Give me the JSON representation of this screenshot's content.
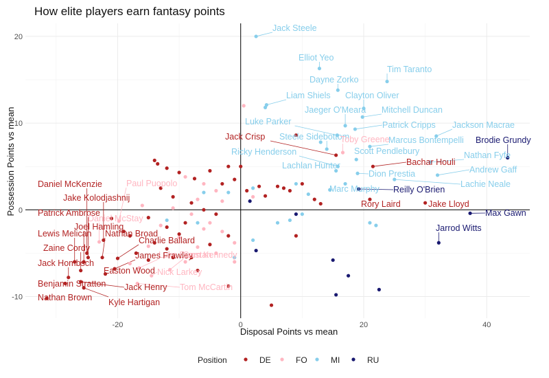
{
  "chart_data": {
    "type": "scatter",
    "title": "How elite players earn fantasy points",
    "xlabel": "Disposal Points vs mean",
    "ylabel": "Possession Points vs mean",
    "xlim": [
      -35,
      47
    ],
    "ylim": [
      -12.5,
      21.5
    ],
    "x_ticks": [
      -20,
      0,
      20,
      40
    ],
    "y_ticks": [
      -10,
      0,
      10,
      20
    ],
    "grid": true,
    "reference_lines": {
      "x": 0,
      "y": 0
    },
    "legend": {
      "title": "Position",
      "position": "bottom",
      "entries": [
        {
          "key": "DE",
          "label": "DE",
          "color": "#b22222"
        },
        {
          "key": "FO",
          "label": "FO",
          "color": "#ffb6c1"
        },
        {
          "key": "MI",
          "label": "MI",
          "color": "#87ceeb"
        },
        {
          "key": "RU",
          "label": "RU",
          "color": "#191970"
        }
      ]
    },
    "labeled_points": [
      {
        "name": "Jack Steele",
        "pos": "MI",
        "x": 2.5,
        "y": 20.0
      },
      {
        "name": "Elliot Yeo",
        "pos": "MI",
        "x": 12.8,
        "y": 16.3
      },
      {
        "name": "Tim Taranto",
        "pos": "MI",
        "x": 23.8,
        "y": 14.8
      },
      {
        "name": "Dayne Zorko",
        "pos": "MI",
        "x": 15.8,
        "y": 13.8
      },
      {
        "name": "Liam Shiels",
        "pos": "MI",
        "x": 4.2,
        "y": 12.1
      },
      {
        "name": "Clayton Oliver",
        "pos": "MI",
        "x": 20.0,
        "y": 11.7
      },
      {
        "name": "Jaeger O'Meara",
        "pos": "MI",
        "x": 17.0,
        "y": 9.7
      },
      {
        "name": "Mitchell Duncan",
        "pos": "MI",
        "x": 19.8,
        "y": 10.7
      },
      {
        "name": "Luke Parker",
        "pos": "MI",
        "x": 15.7,
        "y": 8.6
      },
      {
        "name": "Patrick Cripps",
        "pos": "MI",
        "x": 18.6,
        "y": 9.3
      },
      {
        "name": "Jackson Macrae",
        "pos": "MI",
        "x": 31.8,
        "y": 8.5
      },
      {
        "name": "Jack Crisp",
        "pos": "DE",
        "x": 15.5,
        "y": 6.3
      },
      {
        "name": "Steele Sidebottom",
        "pos": "MI",
        "x": 14.0,
        "y": 7.0
      },
      {
        "name": "Toby Greene",
        "pos": "FO",
        "x": 16.6,
        "y": 6.6
      },
      {
        "name": "Marcus Bontempelli",
        "pos": "MI",
        "x": 21.0,
        "y": 7.3
      },
      {
        "name": "Brodie Grundy",
        "pos": "RU",
        "x": 43.4,
        "y": 6.0
      },
      {
        "name": "Scott Pendlebury",
        "pos": "MI",
        "x": 18.8,
        "y": 5.8
      },
      {
        "name": "Nathan Fyfe",
        "pos": "MI",
        "x": 30.8,
        "y": 5.5
      },
      {
        "name": "Ricky Henderson",
        "pos": "MI",
        "x": 15.8,
        "y": 5.0
      },
      {
        "name": "Bachar Houli",
        "pos": "DE",
        "x": 21.5,
        "y": 5.0
      },
      {
        "name": "Andrew Gaff",
        "pos": "MI",
        "x": 32.0,
        "y": 4.0
      },
      {
        "name": "Lachlan Hunter",
        "pos": "MI",
        "x": 15.5,
        "y": 4.5
      },
      {
        "name": "Dion Prestia",
        "pos": "MI",
        "x": 19.0,
        "y": 4.2
      },
      {
        "name": "Lachie Neale",
        "pos": "MI",
        "x": 25.0,
        "y": 3.5
      },
      {
        "name": "Marc Murphy",
        "pos": "MI",
        "x": 14.5,
        "y": 2.3
      },
      {
        "name": "Reilly O'Brien",
        "pos": "RU",
        "x": 19.2,
        "y": 2.4
      },
      {
        "name": "Rory Laird",
        "pos": "DE",
        "x": 21.0,
        "y": 1.2
      },
      {
        "name": "Jake Lloyd",
        "pos": "DE",
        "x": 30.0,
        "y": 0.8
      },
      {
        "name": "Max Gawn",
        "pos": "RU",
        "x": 37.3,
        "y": -0.4
      },
      {
        "name": "Jarrod Witts",
        "pos": "RU",
        "x": 32.2,
        "y": -3.8
      },
      {
        "name": "Daniel McKenzie",
        "pos": "DE",
        "x": -25.0,
        "y": -5.0
      },
      {
        "name": "Paul Puopolo",
        "pos": "FO",
        "x": -19.8,
        "y": -1.3
      },
      {
        "name": "Jake Kolodjashnij",
        "pos": "DE",
        "x": -22.3,
        "y": -3.5
      },
      {
        "name": "Patrick Ambrose",
        "pos": "DE",
        "x": -24.8,
        "y": -5.5
      },
      {
        "name": "Daniel McStay",
        "pos": "FO",
        "x": -23.0,
        "y": -3.7
      },
      {
        "name": "Joel Hamling",
        "pos": "DE",
        "x": -25.5,
        "y": -6.0
      },
      {
        "name": "Lewis Melican",
        "pos": "DE",
        "x": -27.0,
        "y": -6.0
      },
      {
        "name": "Nathan Broad",
        "pos": "DE",
        "x": -22.5,
        "y": -5.5
      },
      {
        "name": "Charlie Ballard",
        "pos": "DE",
        "x": -20.0,
        "y": -5.6
      },
      {
        "name": "Zaine Cordy",
        "pos": "DE",
        "x": -26.0,
        "y": -7.0
      },
      {
        "name": "Luke Dunstan",
        "pos": "FO",
        "x": -16.5,
        "y": -6.7
      },
      {
        "name": "James Frawley",
        "pos": "DE",
        "x": -20.5,
        "y": -6.8
      },
      {
        "name": "Sam Kennedy",
        "pos": "FO",
        "x": -11.5,
        "y": -6.9
      },
      {
        "name": "Jack Hombsch",
        "pos": "DE",
        "x": -28.0,
        "y": -7.8
      },
      {
        "name": "Easton Wood",
        "pos": "DE",
        "x": -22.0,
        "y": -7.4
      },
      {
        "name": "Nick Larkey",
        "pos": "FO",
        "x": -14.5,
        "y": -7.6
      },
      {
        "name": "Benjamin Stratton",
        "pos": "DE",
        "x": -28.5,
        "y": -8.5
      },
      {
        "name": "Jack Henry",
        "pos": "DE",
        "x": -26.0,
        "y": -8.3
      },
      {
        "name": "Tom McCartin",
        "pos": "FO",
        "x": -16.8,
        "y": -8.5
      },
      {
        "name": "Nathan Brown",
        "pos": "DE",
        "x": -31.5,
        "y": -10.2
      },
      {
        "name": "Kyle Hartigan",
        "pos": "DE",
        "x": -25.5,
        "y": -9.0
      }
    ],
    "unlabeled_points": [
      {
        "pos": "DE",
        "x": -14,
        "y": 5.7
      },
      {
        "pos": "DE",
        "x": -13.5,
        "y": 5.3
      },
      {
        "pos": "DE",
        "x": -12,
        "y": 4.8
      },
      {
        "pos": "DE",
        "x": -10,
        "y": 4.3
      },
      {
        "pos": "DE",
        "x": -7.5,
        "y": 3.6
      },
      {
        "pos": "DE",
        "x": -5,
        "y": 4.5
      },
      {
        "pos": "DE",
        "x": -3,
        "y": 3.0
      },
      {
        "pos": "DE",
        "x": -2,
        "y": 5.0
      },
      {
        "pos": "DE",
        "x": 0,
        "y": 5.0
      },
      {
        "pos": "DE",
        "x": -1,
        "y": 3.5
      },
      {
        "pos": "DE",
        "x": 1,
        "y": 2.2
      },
      {
        "pos": "DE",
        "x": 3,
        "y": 2.7
      },
      {
        "pos": "DE",
        "x": 4,
        "y": 1.6
      },
      {
        "pos": "DE",
        "x": 6,
        "y": 2.7
      },
      {
        "pos": "DE",
        "x": 7,
        "y": 2.5
      },
      {
        "pos": "DE",
        "x": 8,
        "y": 2.2
      },
      {
        "pos": "DE",
        "x": 9,
        "y": 8.6
      },
      {
        "pos": "DE",
        "x": 10,
        "y": 3.0
      },
      {
        "pos": "DE",
        "x": 12,
        "y": 1.2
      },
      {
        "pos": "DE",
        "x": 13,
        "y": 0.7
      },
      {
        "pos": "DE",
        "x": -13,
        "y": 2.5
      },
      {
        "pos": "DE",
        "x": -11,
        "y": 1.5
      },
      {
        "pos": "DE",
        "x": -8,
        "y": 0.8
      },
      {
        "pos": "DE",
        "x": -6,
        "y": 0.0
      },
      {
        "pos": "DE",
        "x": -4,
        "y": -0.5
      },
      {
        "pos": "DE",
        "x": -15,
        "y": -0.9
      },
      {
        "pos": "DE",
        "x": -12,
        "y": -2.0
      },
      {
        "pos": "DE",
        "x": -10,
        "y": -2.8
      },
      {
        "pos": "DE",
        "x": -9,
        "y": -1.5
      },
      {
        "pos": "DE",
        "x": -14,
        "y": -3.8
      },
      {
        "pos": "DE",
        "x": -12,
        "y": -4.5
      },
      {
        "pos": "DE",
        "x": -17,
        "y": -5.0
      },
      {
        "pos": "DE",
        "x": -15,
        "y": -5.8
      },
      {
        "pos": "DE",
        "x": -19,
        "y": -2.5
      },
      {
        "pos": "DE",
        "x": -21,
        "y": -1.0
      },
      {
        "pos": "DE",
        "x": -18,
        "y": -3.0
      },
      {
        "pos": "DE",
        "x": -8,
        "y": -5.5
      },
      {
        "pos": "DE",
        "x": -5,
        "y": -4.0
      },
      {
        "pos": "DE",
        "x": -2,
        "y": -3.0
      },
      {
        "pos": "DE",
        "x": -2,
        "y": -8.8
      },
      {
        "pos": "DE",
        "x": 9,
        "y": -3.0
      },
      {
        "pos": "DE",
        "x": 5,
        "y": -11.0
      },
      {
        "pos": "DE",
        "x": -7,
        "y": -7.0
      },
      {
        "pos": "DE",
        "x": -11,
        "y": -5.5
      },
      {
        "pos": "FO",
        "x": -9,
        "y": 3.8
      },
      {
        "pos": "FO",
        "x": -6,
        "y": 3.0
      },
      {
        "pos": "FO",
        "x": -4,
        "y": 2.2
      },
      {
        "pos": "FO",
        "x": -7,
        "y": 1.2
      },
      {
        "pos": "FO",
        "x": -3,
        "y": 1.0
      },
      {
        "pos": "FO",
        "x": -11,
        "y": 0.2
      },
      {
        "pos": "FO",
        "x": -8,
        "y": -0.5
      },
      {
        "pos": "FO",
        "x": -5,
        "y": -1.5
      },
      {
        "pos": "FO",
        "x": -3,
        "y": -2.5
      },
      {
        "pos": "FO",
        "x": -13,
        "y": -1.8
      },
      {
        "pos": "FO",
        "x": -10,
        "y": -3.2
      },
      {
        "pos": "FO",
        "x": -7,
        "y": -4.3
      },
      {
        "pos": "FO",
        "x": -4,
        "y": -5.0
      },
      {
        "pos": "FO",
        "x": -1,
        "y": -3.8
      },
      {
        "pos": "FO",
        "x": -15,
        "y": -4.2
      },
      {
        "pos": "FO",
        "x": -18,
        "y": -6.2
      },
      {
        "pos": "FO",
        "x": -9,
        "y": -6.0
      },
      {
        "pos": "FO",
        "x": 0.5,
        "y": 12.0
      },
      {
        "pos": "FO",
        "x": 2,
        "y": 1.5
      },
      {
        "pos": "FO",
        "x": -1,
        "y": -6.0
      },
      {
        "pos": "FO",
        "x": -6,
        "y": -2.2
      },
      {
        "pos": "FO",
        "x": -16,
        "y": 0.5
      },
      {
        "pos": "MI",
        "x": 4,
        "y": 11.8
      },
      {
        "pos": "MI",
        "x": 2,
        "y": 2.5
      },
      {
        "pos": "MI",
        "x": 9,
        "y": 3.0
      },
      {
        "pos": "MI",
        "x": 11,
        "y": 1.8
      },
      {
        "pos": "MI",
        "x": 8,
        "y": -1.2
      },
      {
        "pos": "MI",
        "x": 6,
        "y": -1.5
      },
      {
        "pos": "MI",
        "x": 10,
        "y": -0.5
      },
      {
        "pos": "MI",
        "x": 21,
        "y": -1.5
      },
      {
        "pos": "MI",
        "x": 22,
        "y": -1.8
      },
      {
        "pos": "MI",
        "x": -2,
        "y": 2.0
      },
      {
        "pos": "MI",
        "x": -7,
        "y": -1.5
      },
      {
        "pos": "MI",
        "x": -12,
        "y": -1.2
      },
      {
        "pos": "MI",
        "x": -1,
        "y": -5.5
      },
      {
        "pos": "MI",
        "x": 2,
        "y": -3.5
      },
      {
        "pos": "MI",
        "x": 17,
        "y": 3.0
      },
      {
        "pos": "MI",
        "x": -6,
        "y": 2.0
      },
      {
        "pos": "MI",
        "x": 13,
        "y": 7.8
      },
      {
        "pos": "RU",
        "x": 1.5,
        "y": 1.0
      },
      {
        "pos": "RU",
        "x": 9,
        "y": -0.5
      },
      {
        "pos": "RU",
        "x": 2.5,
        "y": -4.7
      },
      {
        "pos": "RU",
        "x": 15,
        "y": -5.8
      },
      {
        "pos": "RU",
        "x": 17.5,
        "y": -7.6
      },
      {
        "pos": "RU",
        "x": 15.5,
        "y": -9.8
      },
      {
        "pos": "RU",
        "x": 22.5,
        "y": -9.2
      }
    ]
  }
}
